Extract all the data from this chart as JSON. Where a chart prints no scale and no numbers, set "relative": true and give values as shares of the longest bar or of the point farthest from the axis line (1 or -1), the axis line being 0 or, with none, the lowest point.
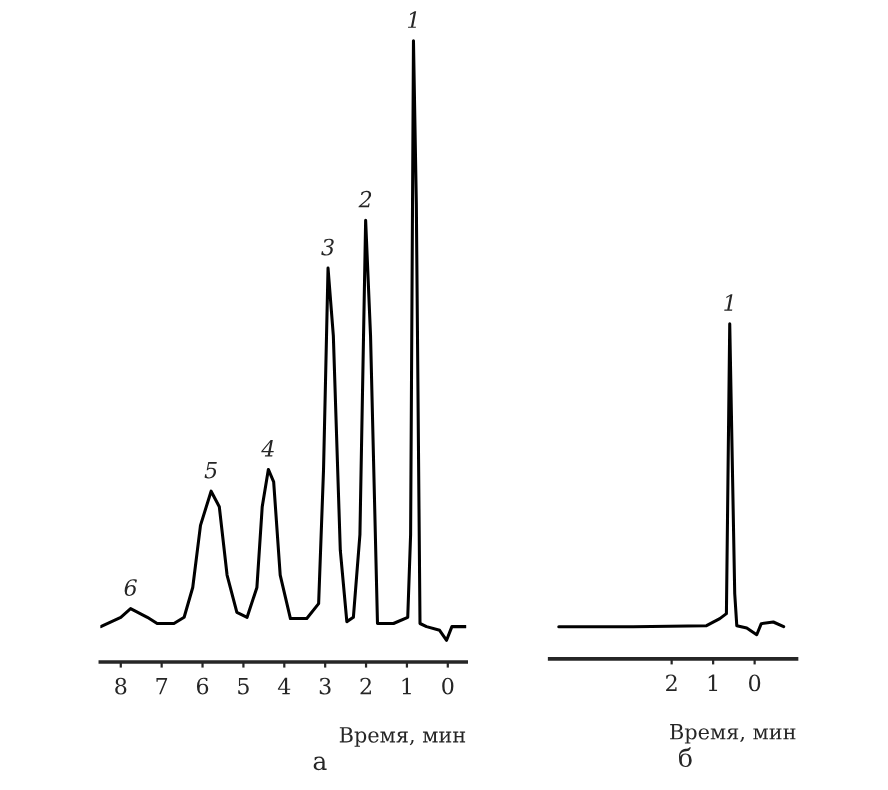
{
  "chart_data": [
    {
      "type": "line",
      "relative": true,
      "xlabel": "Время, мин",
      "xlim": [
        8.5,
        -0.45
      ],
      "xticks": [
        8,
        7,
        6,
        5,
        4,
        3,
        2,
        1,
        0
      ],
      "tick_labels": "x",
      "grid": false,
      "legend": false,
      "marker": "none",
      "line_style": "solid",
      "series": [
        {
          "color": "#000000",
          "x": [
            8.49,
            8.0,
            7.76,
            7.35,
            7.11,
            6.7,
            6.45,
            6.24,
            6.05,
            5.79,
            5.59,
            5.4,
            5.16,
            4.91,
            4.67,
            4.54,
            4.39,
            4.26,
            4.1,
            3.85,
            3.45,
            3.16,
            3.04,
            2.93,
            2.8,
            2.63,
            2.47,
            2.31,
            2.15,
            2.01,
            1.89,
            1.72,
            1.33,
            0.98,
            0.91,
            0.84,
            0.77,
            0.68,
            0.52,
            0.2,
            0.03,
            -0.1,
            -0.45
          ],
          "values": [
            0.057,
            0.072,
            0.086,
            0.072,
            0.062,
            0.062,
            0.072,
            0.12,
            0.22,
            0.275,
            0.25,
            0.14,
            0.08,
            0.072,
            0.12,
            0.25,
            0.31,
            0.29,
            0.14,
            0.07,
            0.07,
            0.094,
            0.31,
            0.634,
            0.525,
            0.18,
            0.065,
            0.072,
            0.205,
            0.711,
            0.525,
            0.062,
            0.062,
            0.072,
            0.205,
            1.0,
            0.738,
            0.062,
            0.057,
            0.051,
            0.035,
            0.057,
            0.057
          ]
        }
      ],
      "annotations": [
        {
          "text": "1",
          "x": 0.84,
          "y": 1.0
        },
        {
          "text": "2",
          "x": 2.01,
          "y": 0.711
        },
        {
          "text": "3",
          "x": 2.93,
          "y": 0.634
        },
        {
          "text": "4",
          "x": 4.39,
          "y": 0.31
        },
        {
          "text": "5",
          "x": 5.79,
          "y": 0.275
        },
        {
          "text": "6",
          "x": 7.76,
          "y": 0.086
        },
        "а"
      ]
    },
    {
      "type": "line",
      "relative": true,
      "xlabel": "Время, мин",
      "xlim": [
        4.94,
        -1.01
      ],
      "xticks": [
        2,
        1,
        0
      ],
      "tick_labels": "x",
      "grid": false,
      "legend": false,
      "marker": "none",
      "line_style": "solid",
      "series": [
        {
          "color": "#000000",
          "x": [
            4.72,
            2.93,
            1.16,
            0.84,
            0.68,
            0.6,
            0.48,
            0.43,
            0.19,
            -0.05,
            -0.16,
            -0.45,
            -0.7
          ],
          "values": [
            0.096,
            0.096,
            0.099,
            0.12,
            0.135,
            1.0,
            0.195,
            0.099,
            0.092,
            0.072,
            0.105,
            0.11,
            0.096
          ]
        }
      ],
      "annotations": [
        {
          "text": "1",
          "x": 0.6,
          "y": 1.0
        },
        "б"
      ]
    }
  ]
}
